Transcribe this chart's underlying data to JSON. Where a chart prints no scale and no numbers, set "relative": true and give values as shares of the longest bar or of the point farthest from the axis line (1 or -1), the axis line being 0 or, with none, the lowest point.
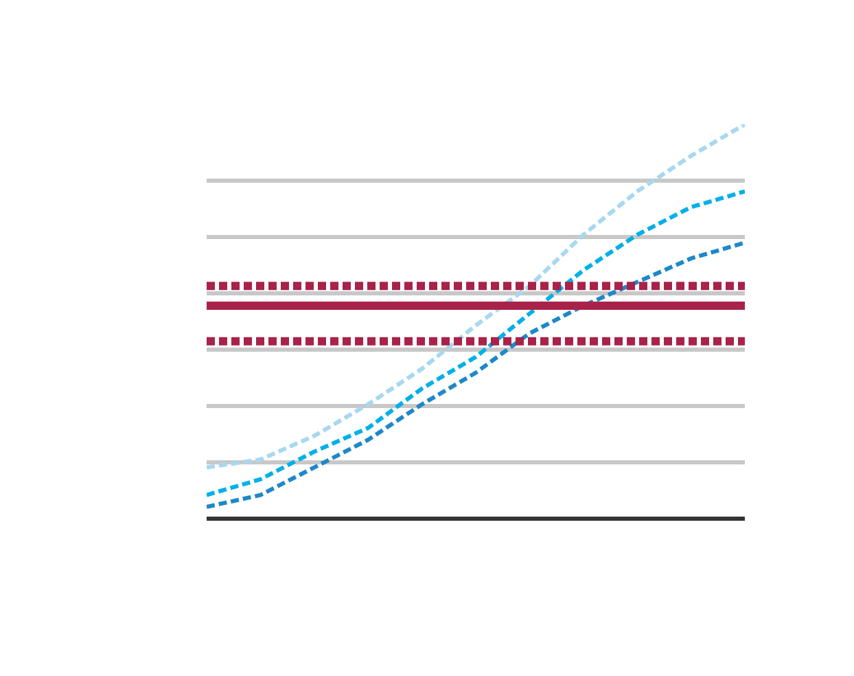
{
  "chart_data": {
    "type": "line",
    "relative": true,
    "grid": "y",
    "line_style": "dashed",
    "categories": [
      null,
      null,
      null,
      null,
      null,
      null,
      null,
      null,
      null,
      null,
      null
    ],
    "series": [
      {
        "color": "#a8d8f0",
        "values": [
          0.13,
          0.15,
          0.21,
          0.29,
          0.38,
          0.49,
          0.59,
          0.72,
          0.83,
          0.92,
          1.0
        ]
      },
      {
        "color": "#00b0e8",
        "values": [
          0.06,
          0.1,
          0.17,
          0.23,
          0.33,
          0.41,
          0.52,
          0.63,
          0.72,
          0.79,
          0.83
        ]
      },
      {
        "color": "#1e88c8",
        "values": [
          0.03,
          0.06,
          0.13,
          0.2,
          0.29,
          0.37,
          0.47,
          0.54,
          0.6,
          0.66,
          0.7
        ]
      }
    ],
    "ref_lines": [
      {
        "axis": "y",
        "value": 0.54,
        "color": "#a8224a",
        "line_style": "solid"
      },
      {
        "axis": "y",
        "value": 0.59,
        "color": "#a8224a",
        "line_style": "dashed"
      },
      {
        "axis": "y",
        "value": 0.45,
        "color": "#a8224a",
        "line_style": "dashed"
      }
    ]
  }
}
